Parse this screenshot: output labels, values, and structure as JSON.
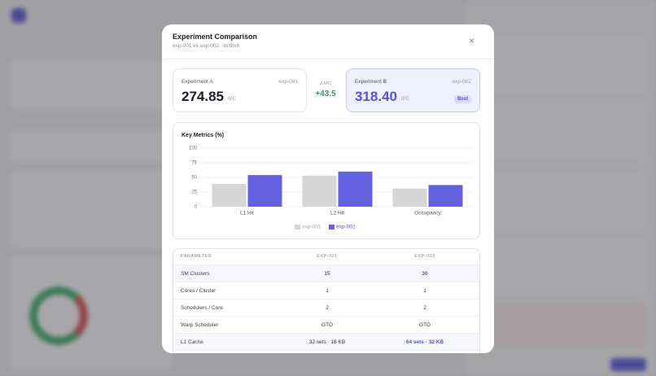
{
  "modal": {
    "title": "Experiment Comparison",
    "subtitle": "exp-001 vs exp-002 · dcf8x8",
    "close": "×",
    "card_a": {
      "label": "Experiment A",
      "id": "exp-001",
      "value": "274.85",
      "unit": "IPC"
    },
    "delta": {
      "label": "Δ IPC",
      "value": "+43.5"
    },
    "card_b": {
      "label": "Experiment B",
      "id": "exp-002",
      "value": "318.40",
      "unit": "IPC",
      "badge": "Best"
    },
    "table": {
      "header": [
        "PARAMETER",
        "EXP-001",
        "EXP-002"
      ],
      "rows": [
        [
          "SM Clusters",
          "15",
          "30"
        ],
        [
          "Cores / Cluster",
          "1",
          "1"
        ],
        [
          "Schedulers / Core",
          "2",
          "2"
        ],
        [
          "Warp Scheduler",
          "GTO",
          "GTO"
        ],
        [
          "L1 Cache",
          "32 sets · 16 KB",
          "64 sets · 32 KB"
        ]
      ]
    }
  },
  "chart_data": {
    "type": "bar",
    "title": "Key Metrics (%)",
    "categories": [
      "L1 Hit",
      "L2 Hit",
      "Occupancy"
    ],
    "series": [
      {
        "name": "exp-001",
        "color": "#d6d6d6",
        "values": [
          39,
          53,
          31
        ]
      },
      {
        "name": "exp-002",
        "color": "#6361e0",
        "values": [
          54,
          60,
          37
        ]
      }
    ],
    "ylim": [
      0,
      100
    ],
    "yticks": [
      0,
      25,
      50,
      75,
      100
    ],
    "grid": true,
    "legend": "bottom"
  }
}
